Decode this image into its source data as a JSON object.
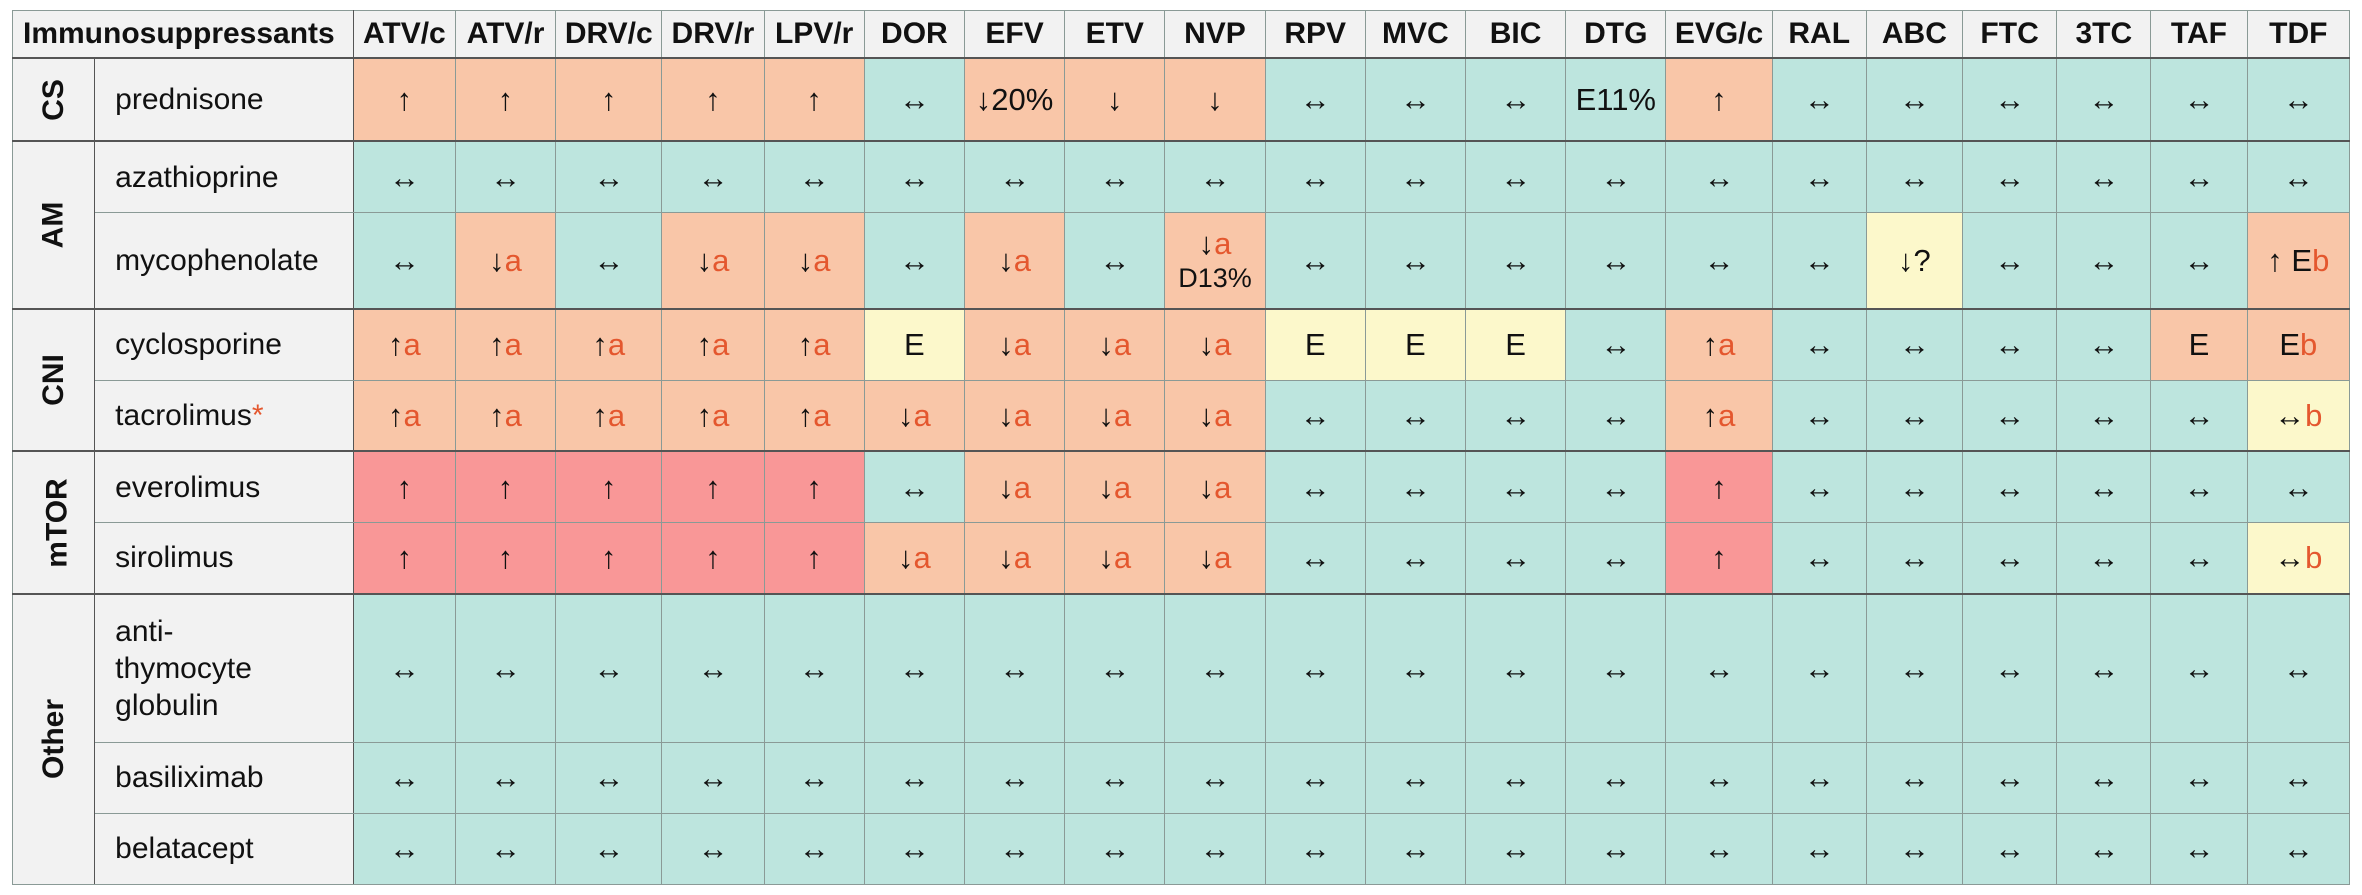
{
  "table": {
    "title": "Immunosuppressants",
    "columns": [
      "ATV/c",
      "ATV/r",
      "DRV/c",
      "DRV/r",
      "LPV/r",
      "DOR",
      "EFV",
      "ETV",
      "NVP",
      "RPV",
      "MVC",
      "BIC",
      "DTG",
      "EVG/c",
      "RAL",
      "ABC",
      "FTC",
      "3TC",
      "TAF",
      "TDF"
    ],
    "colors": {
      "no_interaction": "#bde5de",
      "weak": "#fcf8cb",
      "potential": "#f9c6a8",
      "do_not_coadminister": "#f99797",
      "footnote_text": "#e4572e"
    },
    "groups": [
      {
        "label": "CS",
        "rows": [
          {
            "drug": "prednisone",
            "cells": [
              {
                "t": "↑",
                "k": "o"
              },
              {
                "t": "↑",
                "k": "o"
              },
              {
                "t": "↑",
                "k": "o"
              },
              {
                "t": "↑",
                "k": "o"
              },
              {
                "t": "↑",
                "k": "o"
              },
              {
                "t": "↔",
                "k": "n"
              },
              {
                "t": "↓20%",
                "k": "o"
              },
              {
                "t": "↓",
                "k": "o"
              },
              {
                "t": "↓",
                "k": "o"
              },
              {
                "t": "↔",
                "k": "n"
              },
              {
                "t": "↔",
                "k": "n"
              },
              {
                "t": "↔",
                "k": "n"
              },
              {
                "t": "E11%",
                "k": "n"
              },
              {
                "t": "↑",
                "k": "o"
              },
              {
                "t": "↔",
                "k": "n"
              },
              {
                "t": "↔",
                "k": "n"
              },
              {
                "t": "↔",
                "k": "n"
              },
              {
                "t": "↔",
                "k": "n"
              },
              {
                "t": "↔",
                "k": "n"
              },
              {
                "t": "↔",
                "k": "n"
              }
            ]
          }
        ]
      },
      {
        "label": "AM",
        "rows": [
          {
            "drug": "azathioprine",
            "cells": [
              {
                "t": "↔",
                "k": "n"
              },
              {
                "t": "↔",
                "k": "n"
              },
              {
                "t": "↔",
                "k": "n"
              },
              {
                "t": "↔",
                "k": "n"
              },
              {
                "t": "↔",
                "k": "n"
              },
              {
                "t": "↔",
                "k": "n"
              },
              {
                "t": "↔",
                "k": "n"
              },
              {
                "t": "↔",
                "k": "n"
              },
              {
                "t": "↔",
                "k": "n"
              },
              {
                "t": "↔",
                "k": "n"
              },
              {
                "t": "↔",
                "k": "n"
              },
              {
                "t": "↔",
                "k": "n"
              },
              {
                "t": "↔",
                "k": "n"
              },
              {
                "t": "↔",
                "k": "n"
              },
              {
                "t": "↔",
                "k": "n"
              },
              {
                "t": "↔",
                "k": "n"
              },
              {
                "t": "↔",
                "k": "n"
              },
              {
                "t": "↔",
                "k": "n"
              },
              {
                "t": "↔",
                "k": "n"
              },
              {
                "t": "↔",
                "k": "n"
              }
            ]
          },
          {
            "drug": "mycophenolate",
            "cells": [
              {
                "t": "↔",
                "k": "n"
              },
              {
                "t": "↓",
                "f": "a",
                "k": "o"
              },
              {
                "t": "↔",
                "k": "n"
              },
              {
                "t": "↓",
                "f": "a",
                "k": "o"
              },
              {
                "t": "↓",
                "f": "a",
                "k": "o"
              },
              {
                "t": "↔",
                "k": "n"
              },
              {
                "t": "↓",
                "f": "a",
                "k": "o"
              },
              {
                "t": "↔",
                "k": "n"
              },
              {
                "t": "↓",
                "f": "a",
                "t2": "D13%",
                "k": "o"
              },
              {
                "t": "↔",
                "k": "n"
              },
              {
                "t": "↔",
                "k": "n"
              },
              {
                "t": "↔",
                "k": "n"
              },
              {
                "t": "↔",
                "k": "n"
              },
              {
                "t": "↔",
                "k": "n"
              },
              {
                "t": "↔",
                "k": "n"
              },
              {
                "t": "↓?",
                "k": "y"
              },
              {
                "t": "↔",
                "k": "n"
              },
              {
                "t": "↔",
                "k": "n"
              },
              {
                "t": "↔",
                "k": "n"
              },
              {
                "t": "↑ E",
                "f": "b",
                "k": "o"
              }
            ]
          }
        ]
      },
      {
        "label": "CNI",
        "rows": [
          {
            "drug": "cyclosporine",
            "cells": [
              {
                "t": "↑",
                "f": "a",
                "k": "o"
              },
              {
                "t": "↑",
                "f": "a",
                "k": "o"
              },
              {
                "t": "↑",
                "f": "a",
                "k": "o"
              },
              {
                "t": "↑",
                "f": "a",
                "k": "o"
              },
              {
                "t": "↑",
                "f": "a",
                "k": "o"
              },
              {
                "t": "E",
                "k": "y"
              },
              {
                "t": "↓",
                "f": "a",
                "k": "o"
              },
              {
                "t": "↓",
                "f": "a",
                "k": "o"
              },
              {
                "t": "↓",
                "f": "a",
                "k": "o"
              },
              {
                "t": "E",
                "k": "y"
              },
              {
                "t": "E",
                "k": "y"
              },
              {
                "t": "E",
                "k": "y"
              },
              {
                "t": "↔",
                "k": "n"
              },
              {
                "t": "↑",
                "f": "a",
                "k": "o"
              },
              {
                "t": "↔",
                "k": "n"
              },
              {
                "t": "↔",
                "k": "n"
              },
              {
                "t": "↔",
                "k": "n"
              },
              {
                "t": "↔",
                "k": "n"
              },
              {
                "t": "E",
                "k": "o"
              },
              {
                "t": "E",
                "f": "b",
                "k": "o"
              }
            ]
          },
          {
            "drug": "tacrolimus",
            "mark": "*",
            "cells": [
              {
                "t": "↑",
                "f": "a",
                "k": "o"
              },
              {
                "t": "↑",
                "f": "a",
                "k": "o"
              },
              {
                "t": "↑",
                "f": "a",
                "k": "o"
              },
              {
                "t": "↑",
                "f": "a",
                "k": "o"
              },
              {
                "t": "↑",
                "f": "a",
                "k": "o"
              },
              {
                "t": "↓",
                "f": "a",
                "k": "o"
              },
              {
                "t": "↓",
                "f": "a",
                "k": "o"
              },
              {
                "t": "↓",
                "f": "a",
                "k": "o"
              },
              {
                "t": "↓",
                "f": "a",
                "k": "o"
              },
              {
                "t": "↔",
                "k": "n"
              },
              {
                "t": "↔",
                "k": "n"
              },
              {
                "t": "↔",
                "k": "n"
              },
              {
                "t": "↔",
                "k": "n"
              },
              {
                "t": "↑",
                "f": "a",
                "k": "o"
              },
              {
                "t": "↔",
                "k": "n"
              },
              {
                "t": "↔",
                "k": "n"
              },
              {
                "t": "↔",
                "k": "n"
              },
              {
                "t": "↔",
                "k": "n"
              },
              {
                "t": "↔",
                "k": "n"
              },
              {
                "t": "↔",
                "f": "b",
                "k": "y"
              }
            ]
          }
        ]
      },
      {
        "label": "mTOR",
        "rows": [
          {
            "drug": "everolimus",
            "cells": [
              {
                "t": "↑",
                "k": "r"
              },
              {
                "t": "↑",
                "k": "r"
              },
              {
                "t": "↑",
                "k": "r"
              },
              {
                "t": "↑",
                "k": "r"
              },
              {
                "t": "↑",
                "k": "r"
              },
              {
                "t": "↔",
                "k": "n"
              },
              {
                "t": "↓",
                "f": "a",
                "k": "o"
              },
              {
                "t": "↓",
                "f": "a",
                "k": "o"
              },
              {
                "t": "↓",
                "f": "a",
                "k": "o"
              },
              {
                "t": "↔",
                "k": "n"
              },
              {
                "t": "↔",
                "k": "n"
              },
              {
                "t": "↔",
                "k": "n"
              },
              {
                "t": "↔",
                "k": "n"
              },
              {
                "t": "↑",
                "k": "r"
              },
              {
                "t": "↔",
                "k": "n"
              },
              {
                "t": "↔",
                "k": "n"
              },
              {
                "t": "↔",
                "k": "n"
              },
              {
                "t": "↔",
                "k": "n"
              },
              {
                "t": "↔",
                "k": "n"
              },
              {
                "t": "↔",
                "k": "n"
              }
            ]
          },
          {
            "drug": "sirolimus",
            "cells": [
              {
                "t": "↑",
                "k": "r"
              },
              {
                "t": "↑",
                "k": "r"
              },
              {
                "t": "↑",
                "k": "r"
              },
              {
                "t": "↑",
                "k": "r"
              },
              {
                "t": "↑",
                "k": "r"
              },
              {
                "t": "↓",
                "f": "a",
                "k": "o"
              },
              {
                "t": "↓",
                "f": "a",
                "k": "o"
              },
              {
                "t": "↓",
                "f": "a",
                "k": "o"
              },
              {
                "t": "↓",
                "f": "a",
                "k": "o"
              },
              {
                "t": "↔",
                "k": "n"
              },
              {
                "t": "↔",
                "k": "n"
              },
              {
                "t": "↔",
                "k": "n"
              },
              {
                "t": "↔",
                "k": "n"
              },
              {
                "t": "↑",
                "k": "r"
              },
              {
                "t": "↔",
                "k": "n"
              },
              {
                "t": "↔",
                "k": "n"
              },
              {
                "t": "↔",
                "k": "n"
              },
              {
                "t": "↔",
                "k": "n"
              },
              {
                "t": "↔",
                "k": "n"
              },
              {
                "t": "↔",
                "f": "b",
                "k": "y"
              }
            ]
          }
        ]
      },
      {
        "label": "Other",
        "rows": [
          {
            "drug": "anti-thymocyte globulin",
            "lines": [
              "anti-",
              "thymocyte",
              "globulin"
            ],
            "cells": [
              {
                "t": "↔",
                "k": "n"
              },
              {
                "t": "↔",
                "k": "n"
              },
              {
                "t": "↔",
                "k": "n"
              },
              {
                "t": "↔",
                "k": "n"
              },
              {
                "t": "↔",
                "k": "n"
              },
              {
                "t": "↔",
                "k": "n"
              },
              {
                "t": "↔",
                "k": "n"
              },
              {
                "t": "↔",
                "k": "n"
              },
              {
                "t": "↔",
                "k": "n"
              },
              {
                "t": "↔",
                "k": "n"
              },
              {
                "t": "↔",
                "k": "n"
              },
              {
                "t": "↔",
                "k": "n"
              },
              {
                "t": "↔",
                "k": "n"
              },
              {
                "t": "↔",
                "k": "n"
              },
              {
                "t": "↔",
                "k": "n"
              },
              {
                "t": "↔",
                "k": "n"
              },
              {
                "t": "↔",
                "k": "n"
              },
              {
                "t": "↔",
                "k": "n"
              },
              {
                "t": "↔",
                "k": "n"
              },
              {
                "t": "↔",
                "k": "n"
              }
            ]
          },
          {
            "drug": "basiliximab",
            "cells": [
              {
                "t": "↔",
                "k": "n"
              },
              {
                "t": "↔",
                "k": "n"
              },
              {
                "t": "↔",
                "k": "n"
              },
              {
                "t": "↔",
                "k": "n"
              },
              {
                "t": "↔",
                "k": "n"
              },
              {
                "t": "↔",
                "k": "n"
              },
              {
                "t": "↔",
                "k": "n"
              },
              {
                "t": "↔",
                "k": "n"
              },
              {
                "t": "↔",
                "k": "n"
              },
              {
                "t": "↔",
                "k": "n"
              },
              {
                "t": "↔",
                "k": "n"
              },
              {
                "t": "↔",
                "k": "n"
              },
              {
                "t": "↔",
                "k": "n"
              },
              {
                "t": "↔",
                "k": "n"
              },
              {
                "t": "↔",
                "k": "n"
              },
              {
                "t": "↔",
                "k": "n"
              },
              {
                "t": "↔",
                "k": "n"
              },
              {
                "t": "↔",
                "k": "n"
              },
              {
                "t": "↔",
                "k": "n"
              },
              {
                "t": "↔",
                "k": "n"
              }
            ]
          },
          {
            "drug": "belatacept",
            "cells": [
              {
                "t": "↔",
                "k": "n"
              },
              {
                "t": "↔",
                "k": "n"
              },
              {
                "t": "↔",
                "k": "n"
              },
              {
                "t": "↔",
                "k": "n"
              },
              {
                "t": "↔",
                "k": "n"
              },
              {
                "t": "↔",
                "k": "n"
              },
              {
                "t": "↔",
                "k": "n"
              },
              {
                "t": "↔",
                "k": "n"
              },
              {
                "t": "↔",
                "k": "n"
              },
              {
                "t": "↔",
                "k": "n"
              },
              {
                "t": "↔",
                "k": "n"
              },
              {
                "t": "↔",
                "k": "n"
              },
              {
                "t": "↔",
                "k": "n"
              },
              {
                "t": "↔",
                "k": "n"
              },
              {
                "t": "↔",
                "k": "n"
              },
              {
                "t": "↔",
                "k": "n"
              },
              {
                "t": "↔",
                "k": "n"
              },
              {
                "t": "↔",
                "k": "n"
              },
              {
                "t": "↔",
                "k": "n"
              },
              {
                "t": "↔",
                "k": "n"
              }
            ]
          }
        ]
      }
    ]
  }
}
